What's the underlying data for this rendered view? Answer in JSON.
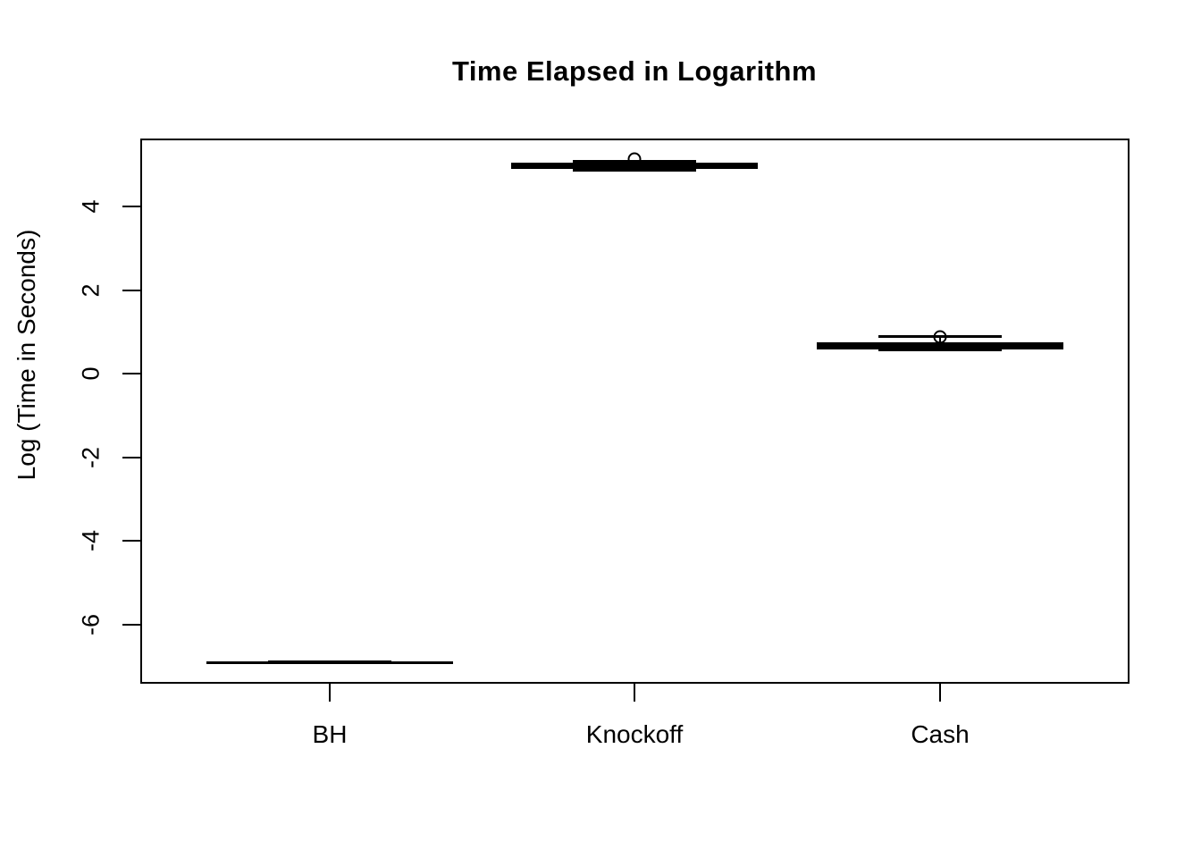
{
  "title": "Time Elapsed in Logarithm",
  "colors": {
    "foreground": "#000000",
    "background": "#ffffff"
  },
  "chart_data": {
    "type": "boxplot",
    "title": "Time Elapsed in Logarithm",
    "xlabel": "",
    "ylabel": "Log (Time in Seconds)",
    "categories": [
      "BH",
      "Knockoff",
      "Cash"
    ],
    "y_ticks": [
      4,
      2,
      0,
      -2,
      -4,
      -6
    ],
    "ylim": [
      -7.4,
      5.6
    ],
    "grid": false,
    "legend": "none",
    "groups": [
      {
        "name": "BH",
        "median": -6.91,
        "q1": -6.92,
        "q3": -6.9,
        "whisker_low": -6.927,
        "whisker_high": -6.893,
        "outliers": []
      },
      {
        "name": "Knockoff",
        "median": 4.97,
        "q1": 4.9,
        "q3": 5.04,
        "whisker_low": 4.86,
        "whisker_high": 5.08,
        "outliers": [
          5.13
        ]
      },
      {
        "name": "Cash",
        "median": 0.665,
        "q1": 0.58,
        "q3": 0.75,
        "whisker_low": 0.56,
        "whisker_high": 0.88,
        "outliers": [
          0.88
        ]
      }
    ]
  }
}
